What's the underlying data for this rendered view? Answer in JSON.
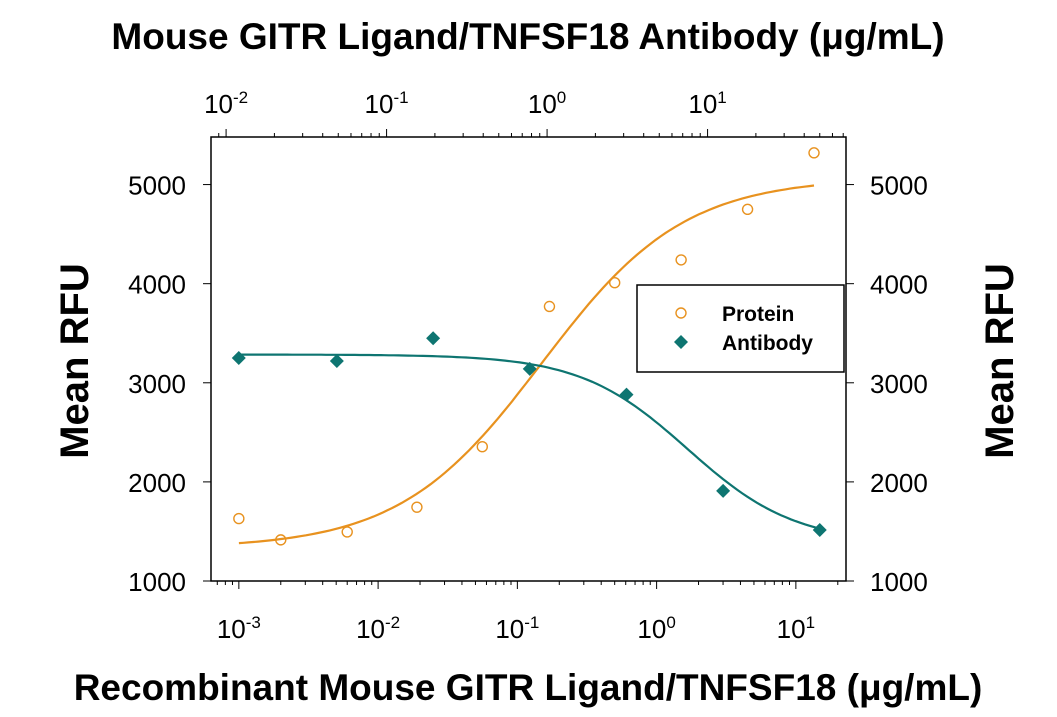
{
  "chart_data": {
    "type": "scatter",
    "title": "Mouse GITR Ligand/TNFSF18 Antibody (μg/mL)",
    "xlabel": "Recombinant Mouse GITR Ligand/TNFSF18 (μg/mL)",
    "ylabel": "Mean RFU",
    "ylabel_right": "Mean RFU",
    "x_scale": "log",
    "x_top_scale": "log",
    "xlim_log10": [
      -3.2,
      1.36
    ],
    "x_top_lim_log10": [
      -2.094,
      1.8625
    ],
    "ylim": [
      1000,
      5480
    ],
    "yticks": [
      "1000",
      "2000",
      "3000",
      "4000",
      "5000"
    ],
    "xticks_bottom": [
      {
        "base": "10",
        "exp": "-3"
      },
      {
        "base": "10",
        "exp": "-2"
      },
      {
        "base": "10",
        "exp": "-1"
      },
      {
        "base": "10",
        "exp": "0"
      },
      {
        "base": "10",
        "exp": "1"
      }
    ],
    "xticks_top": [
      {
        "base": "10",
        "exp": "-2"
      },
      {
        "base": "10",
        "exp": "-1"
      },
      {
        "base": "10",
        "exp": "0"
      },
      {
        "base": "10",
        "exp": "1"
      }
    ],
    "grid": false,
    "legend_position": "center-right",
    "series": [
      {
        "name": "Protein",
        "axis": "bottom",
        "marker": "open-circle",
        "color": "#e8921f",
        "x": [
          0.001,
          0.002,
          0.006,
          0.019,
          0.056,
          0.17,
          0.5,
          1.5,
          4.5,
          13.5
        ],
        "y": [
          1630,
          1415,
          1495,
          1745,
          2355,
          3770,
          4010,
          4240,
          4750,
          5320
        ],
        "fit": {
          "model": "4PL",
          "bottom": 1330,
          "top": 5070,
          "ec50": 0.15,
          "hill": 0.85
        }
      },
      {
        "name": "Antibody",
        "axis": "top",
        "marker": "filled-diamond",
        "color": "#0e7571",
        "x": [
          0.012,
          0.049,
          0.195,
          0.78,
          3.125,
          12.5,
          50
        ],
        "y": [
          3250,
          3220,
          3450,
          3140,
          2880,
          1910,
          1515
        ],
        "fit": {
          "model": "4PL-decreasing",
          "bottom": 1380,
          "top": 3285,
          "ec50": 7.5,
          "hill": 1.3
        }
      }
    ]
  }
}
